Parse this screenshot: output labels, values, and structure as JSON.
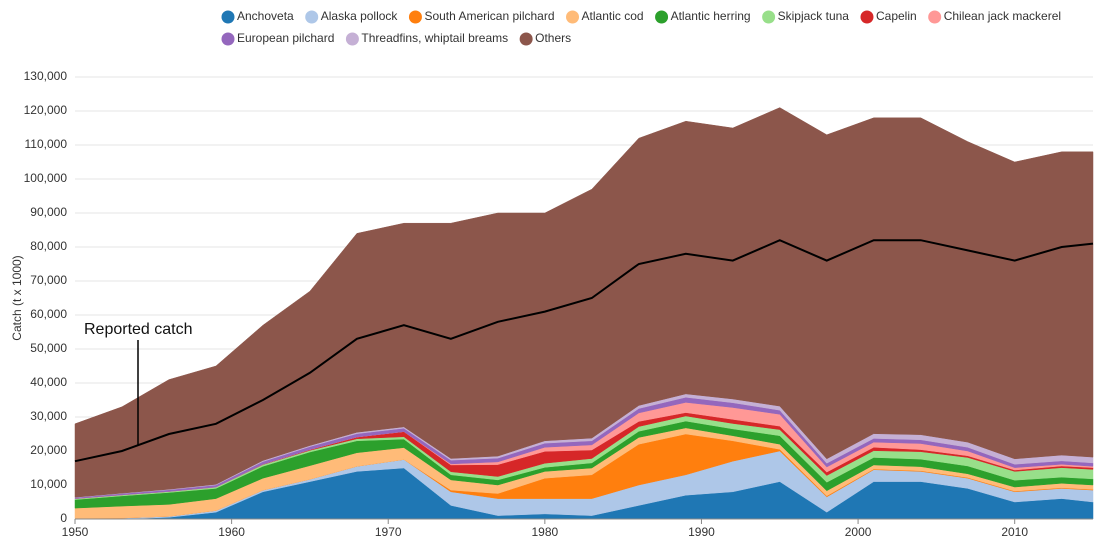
{
  "chart_data": {
    "type": "stacked-area",
    "y_label": "Catch (t x 1000)",
    "x": [
      1950,
      1953,
      1956,
      1959,
      1962,
      1965,
      1968,
      1971,
      1974,
      1977,
      1980,
      1983,
      1986,
      1989,
      1992,
      1995,
      1998,
      2001,
      2004,
      2007,
      2010,
      2013,
      2015
    ],
    "xlim": [
      1950,
      2015
    ],
    "xticks": [
      1950,
      1960,
      1970,
      1980,
      1990,
      2000,
      2010
    ],
    "ylim": [
      0,
      130000
    ],
    "yticks": [
      0,
      {
        "value": 10000,
        "label": "10,000"
      },
      {
        "value": 20000,
        "label": "20,000"
      },
      {
        "value": 30000,
        "label": "30,000"
      },
      {
        "value": 40000,
        "label": "40,000"
      },
      {
        "value": 50000,
        "label": "50,000"
      },
      {
        "value": 60000,
        "label": "60,000"
      },
      {
        "value": 70000,
        "label": "70,000"
      },
      {
        "value": 80000,
        "label": "80,000"
      },
      {
        "value": 90000,
        "label": "90,000"
      },
      {
        "value": 100000,
        "label": "100,000"
      },
      {
        "value": 110000,
        "label": "110,000"
      },
      {
        "value": 120000,
        "label": "120,000"
      },
      {
        "value": 130000,
        "label": "130,000"
      }
    ],
    "grid": true,
    "legend": "top",
    "series": [
      {
        "name": "Anchoveta",
        "color": "#1f77b4",
        "values": [
          0,
          0,
          500,
          2000,
          8000,
          11000,
          14000,
          15000,
          4000,
          1000,
          1500,
          1000,
          4000,
          7000,
          8000,
          11000,
          2000,
          11000,
          11000,
          9000,
          5000,
          6000,
          5000
        ]
      },
      {
        "name": "Alaska pollock",
        "color": "#aec7e8",
        "values": [
          200,
          300,
          300,
          500,
          500,
          700,
          1500,
          2500,
          4000,
          5000,
          4500,
          5000,
          6000,
          6000,
          9000,
          9000,
          4500,
          3500,
          3000,
          3000,
          3000,
          3000,
          3500
        ]
      },
      {
        "name": "South American pilchard",
        "color": "#ff7f0e",
        "values": [
          0,
          0,
          0,
          0,
          0,
          0,
          0,
          0,
          500,
          1500,
          6000,
          7000,
          12000,
          12000,
          6000,
          500,
          300,
          200,
          200,
          200,
          200,
          200,
          200
        ]
      },
      {
        "name": "Atlantic cod",
        "color": "#ffbb78",
        "values": [
          3000,
          3500,
          3500,
          3500,
          3500,
          4000,
          4000,
          3500,
          3000,
          2500,
          2000,
          2000,
          2000,
          1800,
          1500,
          1500,
          1500,
          1200,
          1200,
          1100,
          1200,
          1300,
          1300
        ]
      },
      {
        "name": "Atlantic herring",
        "color": "#2ca02c",
        "values": [
          2500,
          3000,
          3500,
          3000,
          3500,
          4000,
          3500,
          2500,
          1500,
          1500,
          1200,
          1500,
          1800,
          2000,
          2000,
          2500,
          2500,
          2200,
          2200,
          2300,
          2000,
          1800,
          1800
        ]
      },
      {
        "name": "Skipjack tuna",
        "color": "#98df8a",
        "values": [
          300,
          300,
          300,
          400,
          500,
          500,
          600,
          700,
          900,
          1000,
          1200,
          1300,
          1400,
          1500,
          1600,
          1800,
          2000,
          2000,
          2200,
          2500,
          2600,
          2800,
          2800
        ]
      },
      {
        "name": "Capelin",
        "color": "#d62728",
        "values": [
          0,
          0,
          0,
          0,
          100,
          200,
          500,
          1500,
          2000,
          3500,
          3500,
          2500,
          1500,
          1000,
          1200,
          1000,
          1000,
          1000,
          600,
          500,
          400,
          500,
          500
        ]
      },
      {
        "name": "Chilean jack mackerel",
        "color": "#ff9896",
        "values": [
          0,
          0,
          0,
          0,
          0,
          0,
          0,
          0,
          300,
          800,
          1200,
          1500,
          2500,
          3000,
          3500,
          3500,
          1500,
          1500,
          1800,
          1400,
          700,
          500,
          400
        ]
      },
      {
        "name": "European pilchard",
        "color": "#9467bd",
        "values": [
          300,
          400,
          500,
          600,
          800,
          900,
          1000,
          1000,
          1100,
          1100,
          1200,
          1200,
          1300,
          1500,
          1400,
          1200,
          1100,
          1100,
          1100,
          1100,
          1000,
          1000,
          1000
        ]
      },
      {
        "name": "Threadfins, whiptail breams",
        "color": "#c5b0d5",
        "values": [
          100,
          100,
          150,
          200,
          300,
          300,
          400,
          400,
          500,
          600,
          700,
          800,
          900,
          1000,
          1100,
          1200,
          1300,
          1400,
          1500,
          1500,
          1600,
          1700,
          1700
        ]
      },
      {
        "name": "Others",
        "color": "#8c564b",
        "values": [
          21600,
          25400,
          32250,
          34800,
          39800,
          45400,
          58500,
          59900,
          69200,
          71500,
          67000,
          73200,
          78600,
          80200,
          79700,
          87800,
          95300,
          92900,
          93200,
          88400,
          87300,
          89200,
          89800
        ]
      }
    ],
    "reported": {
      "name": "Reported catch",
      "color": "#000000",
      "values": [
        17000,
        20000,
        25000,
        28000,
        35000,
        43000,
        53000,
        57000,
        53000,
        58000,
        61000,
        65000,
        75000,
        78000,
        76000,
        82000,
        76000,
        82000,
        82000,
        79000,
        76000,
        80000,
        81000
      ]
    }
  }
}
